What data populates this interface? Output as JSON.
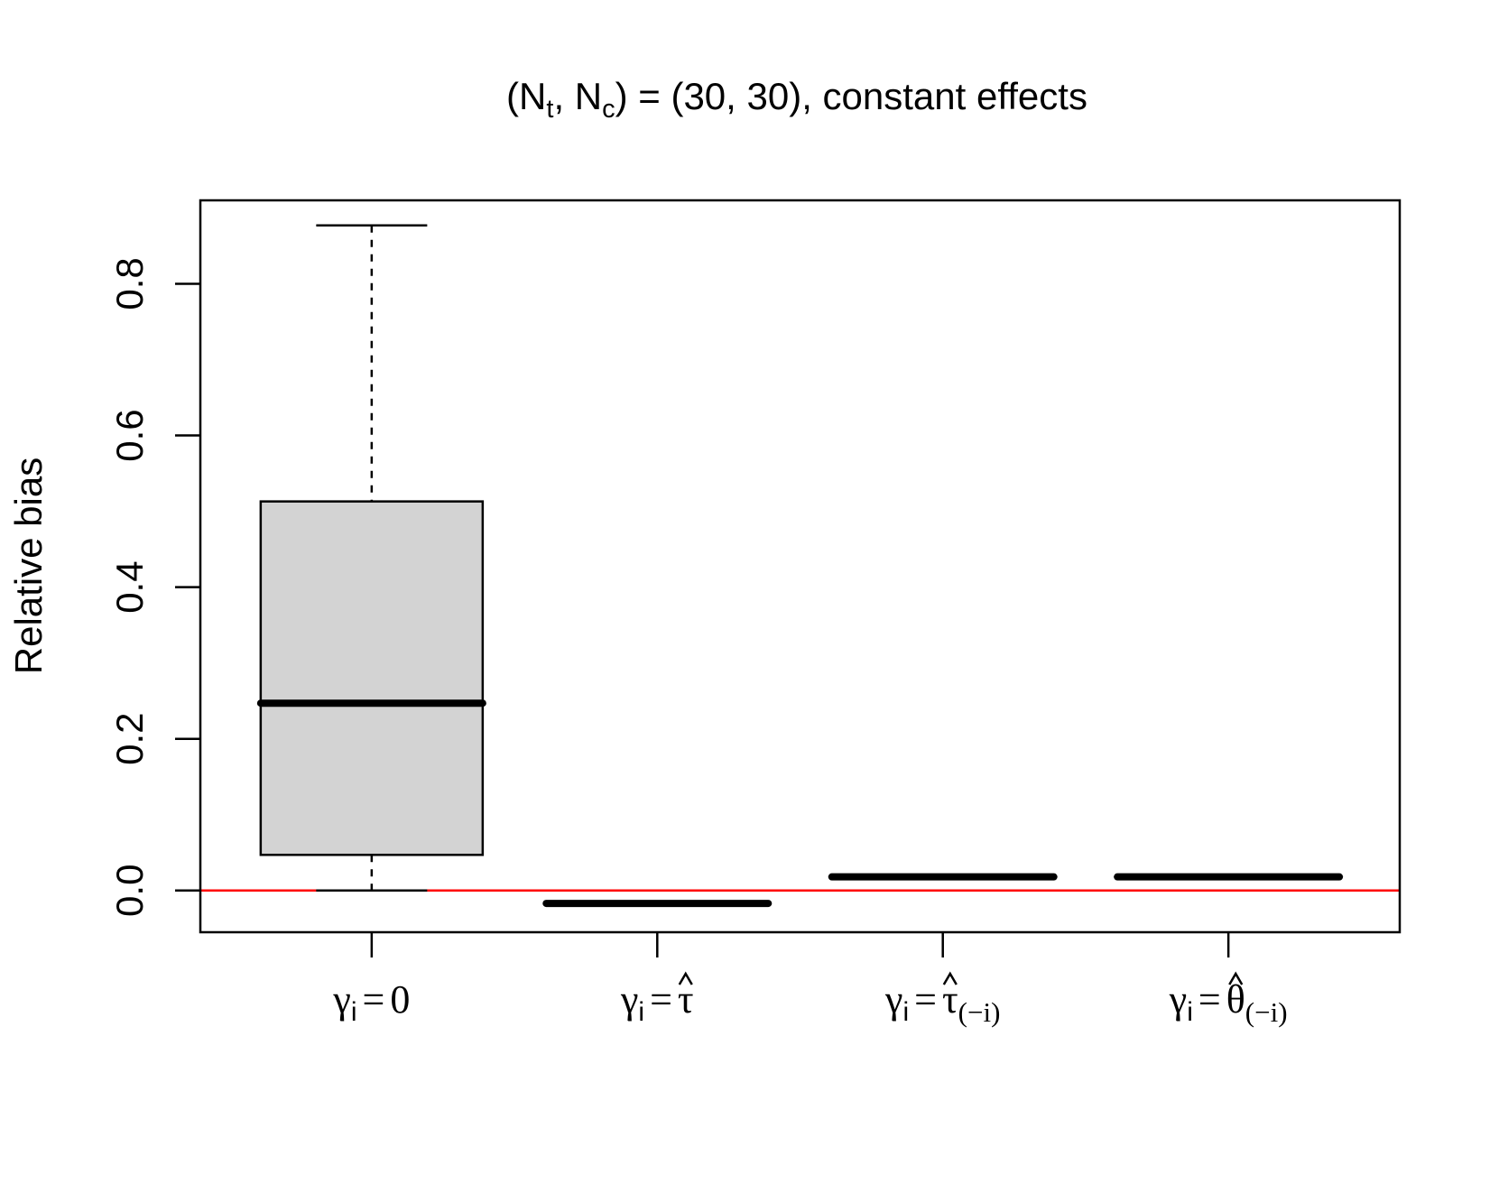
{
  "chart_data": {
    "type": "box",
    "title": {
      "pre": "(N",
      "sub1": "t",
      "mid": ", N",
      "sub2": "c",
      "post": ") = (30, 30), constant effects"
    },
    "ylabel": "Relative bias",
    "ylim": [
      -0.055,
      0.91
    ],
    "yticks": [
      "0.0",
      "0.2",
      "0.4",
      "0.6",
      "0.8"
    ],
    "reference_line": {
      "y": 0.0,
      "color": "#ff0000"
    },
    "box_fill": "#d3d3d3",
    "categories": [
      {
        "base": "γ",
        "sub": "i",
        "eq": "=",
        "value": "0",
        "value_sub": "",
        "hat": false
      },
      {
        "base": "γ",
        "sub": "i",
        "eq": "=",
        "value": "τ",
        "value_sub": "",
        "hat": true
      },
      {
        "base": "γ",
        "sub": "i",
        "eq": "=",
        "value": "τ",
        "value_sub": "(−i)",
        "hat": true
      },
      {
        "base": "γ",
        "sub": "i",
        "eq": "=",
        "value": "θ",
        "value_sub": "(−i)",
        "hat": true
      }
    ],
    "boxes": [
      {
        "whisker_low": 0.0,
        "q1": 0.047,
        "median": 0.247,
        "q3": 0.513,
        "whisker_high": 0.877
      },
      {
        "whisker_low": -0.017,
        "q1": -0.017,
        "median": -0.017,
        "q3": -0.017,
        "whisker_high": -0.017
      },
      {
        "whisker_low": 0.018,
        "q1": 0.018,
        "median": 0.018,
        "q3": 0.018,
        "whisker_high": 0.018
      },
      {
        "whisker_low": 0.018,
        "q1": 0.018,
        "median": 0.018,
        "q3": 0.018,
        "whisker_high": 0.018
      }
    ]
  }
}
